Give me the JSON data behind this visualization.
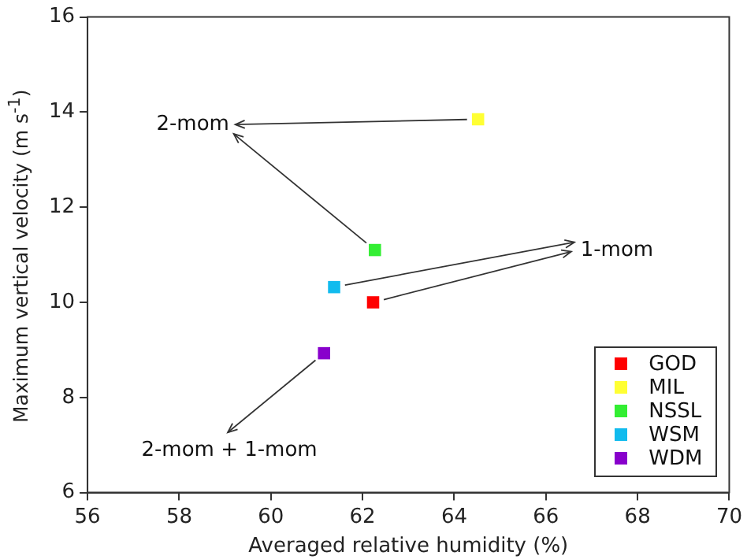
{
  "chart_data": {
    "type": "scatter",
    "xlabel": "Averaged relative humidity (%)",
    "ylabel": "Maximum vertical velocity (m s$^{-1}$)",
    "xlim": [
      56,
      70
    ],
    "xticks": [
      56,
      58,
      60,
      62,
      64,
      66,
      68,
      70
    ],
    "ylim": [
      6,
      16
    ],
    "yticks": [
      6,
      8,
      10,
      12,
      14,
      16
    ],
    "marker": "square",
    "legend": "bottom right",
    "series": [
      {
        "name": "GOD",
        "color": "#ff0000",
        "x": [
          62.23
        ],
        "values": [
          10.0
        ]
      },
      {
        "name": "MIL",
        "color": "#ffff33",
        "x": [
          64.52
        ],
        "values": [
          13.85
        ]
      },
      {
        "name": "NSSL",
        "color": "#33ee33",
        "x": [
          62.27
        ],
        "values": [
          11.1
        ]
      },
      {
        "name": "WSM",
        "color": "#11bbee",
        "x": [
          61.38
        ],
        "values": [
          10.32
        ]
      },
      {
        "name": "WDM",
        "color": "#8800cc",
        "x": [
          61.16
        ],
        "values": [
          8.93
        ]
      }
    ],
    "annotations": [
      {
        "text": "2-mom",
        "x": 64.52,
        "y": 13.85
      },
      {
        "text": "1-mom",
        "x": 61.38,
        "y": 10.32
      },
      {
        "text": "2-mom + 1-mom",
        "x": 61.16,
        "y": 8.93
      }
    ]
  }
}
